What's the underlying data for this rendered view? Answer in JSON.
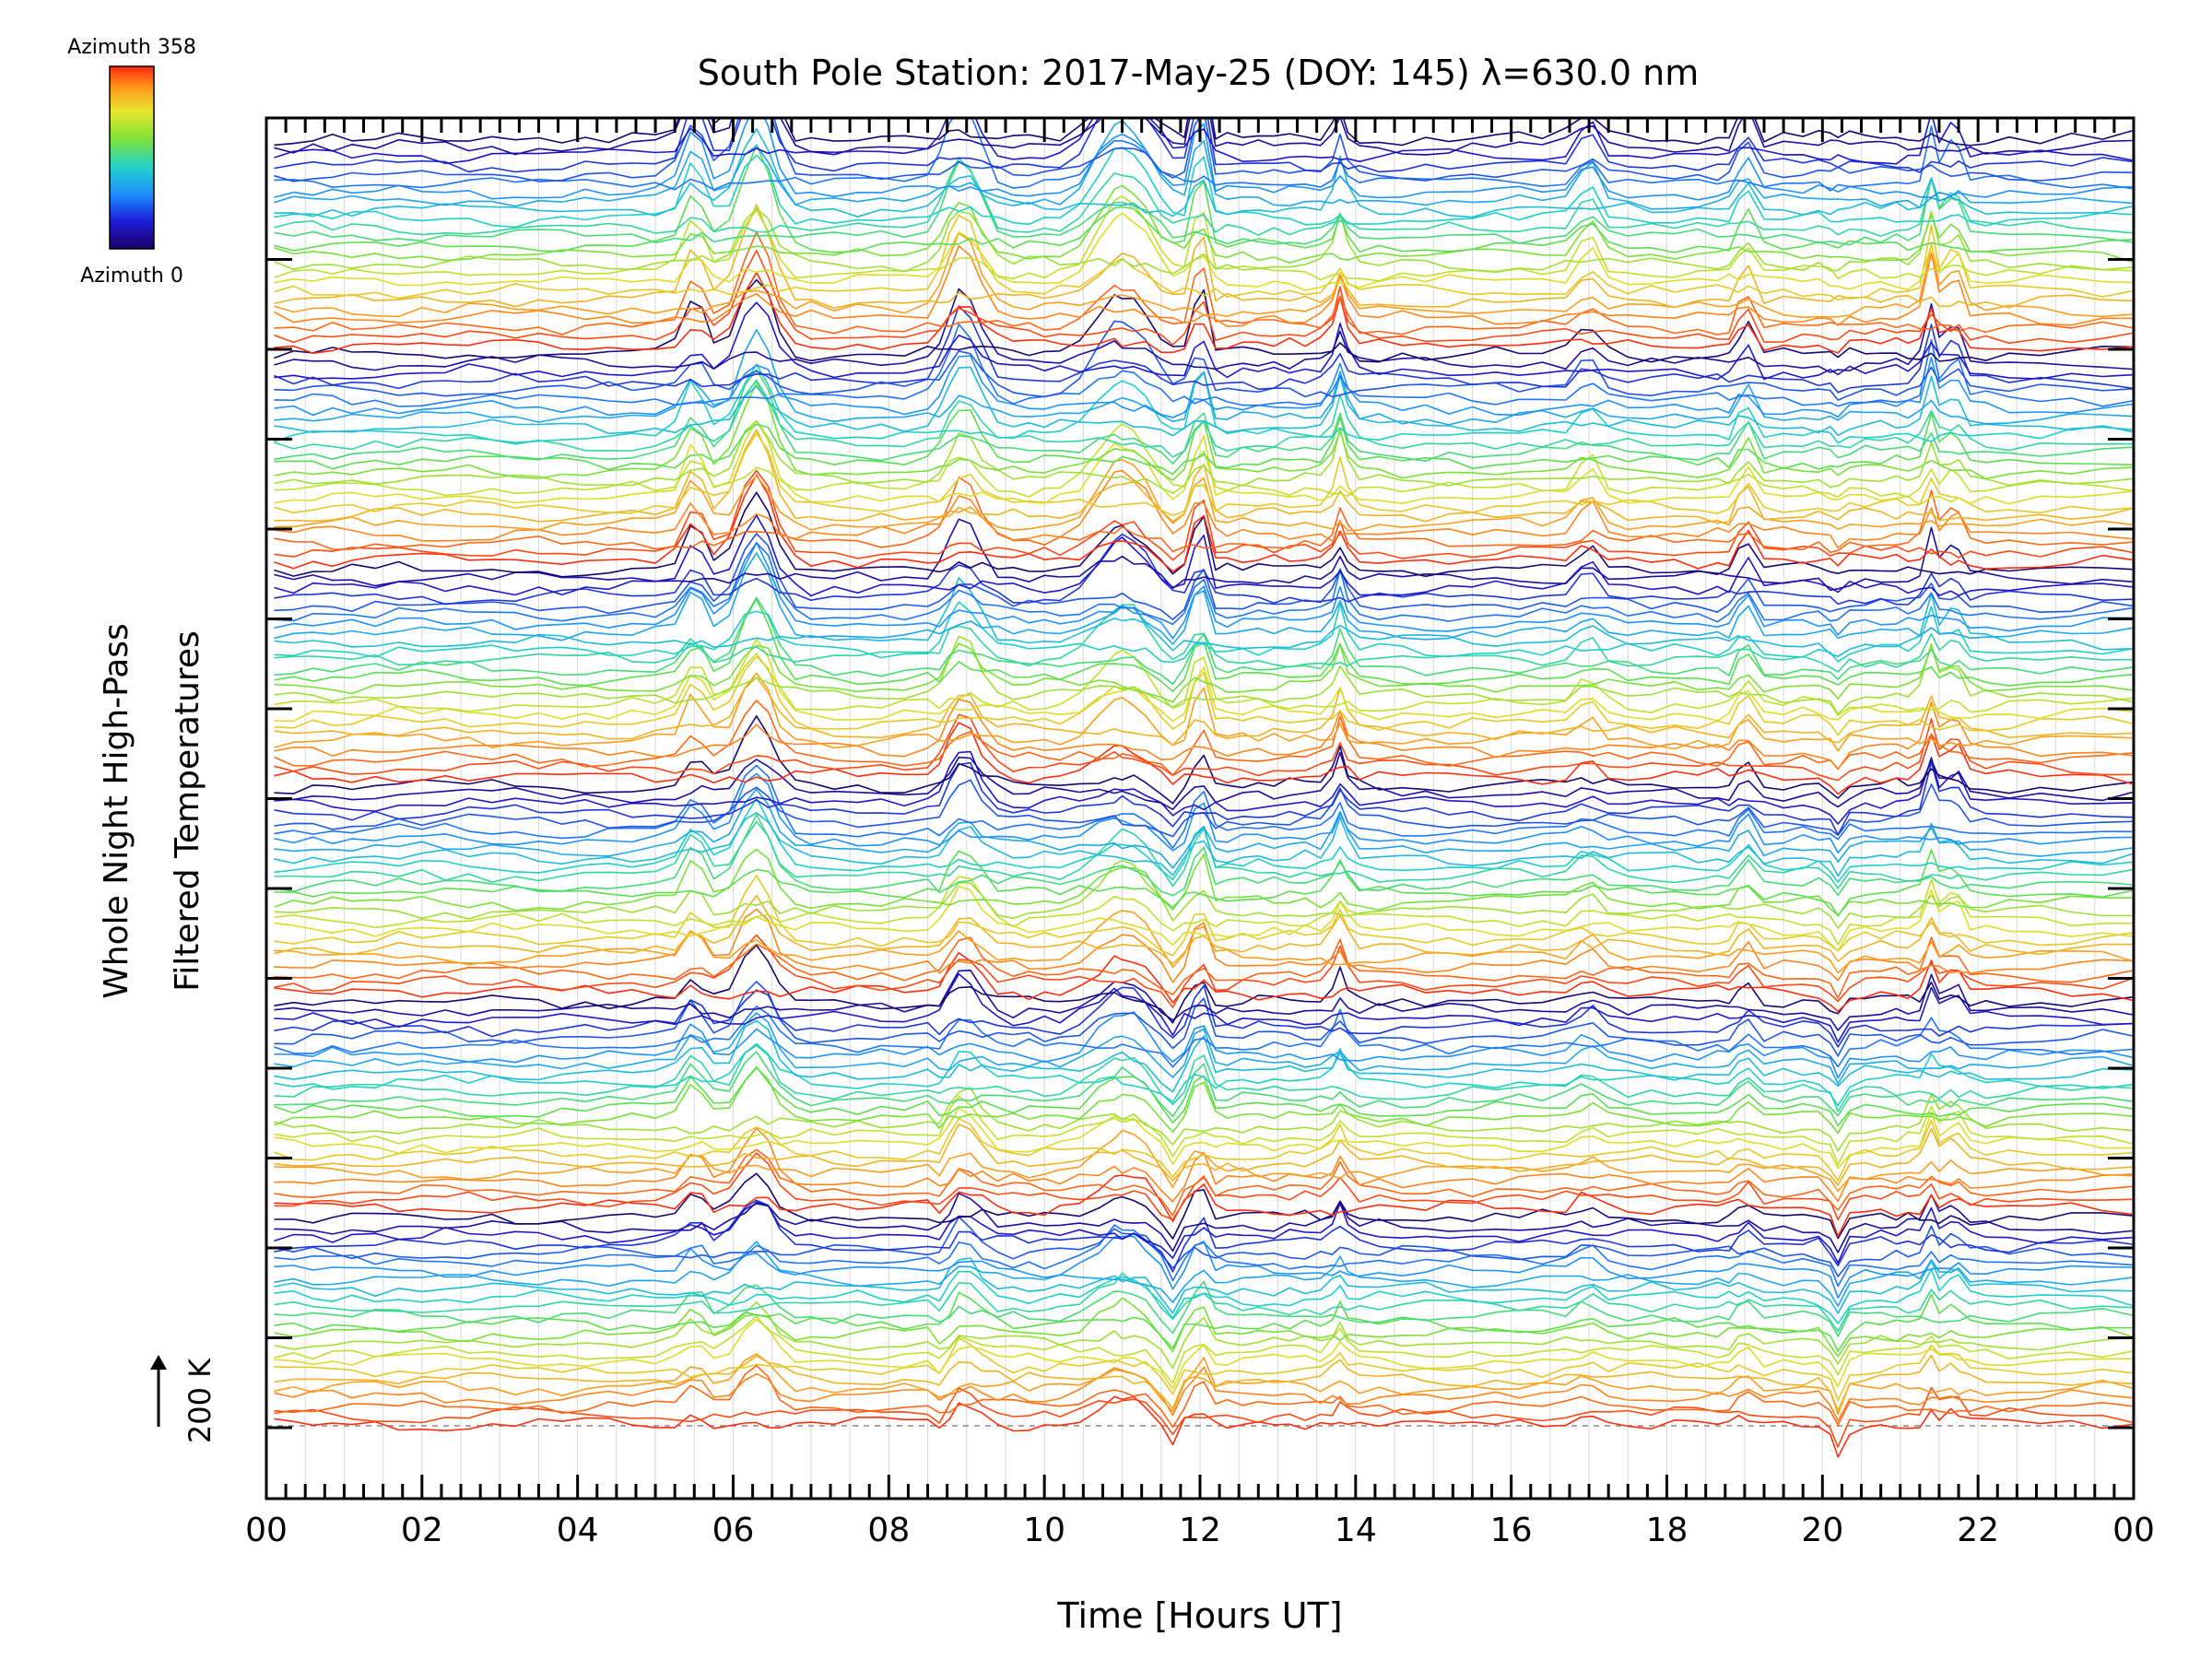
{
  "chart_data": {
    "type": "line",
    "title": "South Pole Station: 2017-May-25 (DOY: 145) λ=630.0 nm",
    "xlabel": "Time [Hours UT]",
    "ylabel": "Whole Night High-Pass",
    "ylabel_line2": "Filtered Temperatures",
    "xlim": [
      0,
      24
    ],
    "x_tick_labels": [
      "00",
      "02",
      "04",
      "06",
      "08",
      "10",
      "12",
      "14",
      "16",
      "18",
      "20",
      "22",
      "00"
    ],
    "grid": true,
    "colorbar": {
      "top_label": "Azimuth  358",
      "bottom_label": "Azimuth  0",
      "colormap": "rainbow",
      "range": [
        0,
        358
      ]
    },
    "scale_bar": {
      "label": "200 K"
    },
    "series_count": 144,
    "stack_groups": 6,
    "sample_times": [
      0.1,
      0.35,
      0.6,
      0.85,
      1.1,
      1.4,
      1.7,
      2.0,
      2.3,
      2.6,
      2.9,
      3.2,
      3.5,
      3.8,
      4.1,
      4.4,
      4.7,
      5.0,
      5.25,
      5.45,
      5.6,
      5.75,
      5.95,
      6.15,
      6.3,
      6.45,
      6.6,
      6.8,
      7.0,
      7.3,
      7.6,
      7.9,
      8.2,
      8.5,
      8.65,
      8.78,
      8.9,
      9.05,
      9.2,
      9.4,
      9.6,
      9.8,
      10.0,
      10.2,
      10.45,
      10.7,
      10.9,
      11.0,
      11.15,
      11.3,
      11.5,
      11.65,
      11.8,
      11.93,
      12.05,
      12.2,
      12.35,
      12.55,
      12.75,
      12.95,
      13.15,
      13.35,
      13.55,
      13.7,
      13.8,
      13.9,
      14.05,
      14.3,
      14.6,
      14.9,
      15.2,
      15.5,
      15.8,
      16.1,
      16.4,
      16.7,
      16.9,
      17.05,
      17.25,
      17.5,
      17.8,
      18.1,
      18.4,
      18.65,
      18.8,
      18.92,
      19.05,
      19.25,
      19.5,
      19.75,
      19.95,
      20.1,
      20.2,
      20.35,
      20.55,
      20.75,
      20.95,
      21.1,
      21.25,
      21.4,
      21.5,
      21.65,
      21.75,
      21.9,
      22.1,
      22.4,
      22.8,
      23.2,
      23.6,
      23.98
    ],
    "events": [
      {
        "t": 5.5,
        "amp": 55,
        "w": 0.18
      },
      {
        "t": 6.3,
        "amp": 95,
        "w": 0.28
      },
      {
        "t": 8.95,
        "amp": 80,
        "w": 0.3
      },
      {
        "t": 11.0,
        "amp": 75,
        "w": 0.45
      },
      {
        "t": 12.0,
        "amp": 80,
        "w": 0.1
      },
      {
        "t": 13.8,
        "amp": 50,
        "w": 0.1
      },
      {
        "t": 17.0,
        "amp": 40,
        "w": 0.2
      },
      {
        "t": 19.0,
        "amp": 45,
        "w": 0.1
      },
      {
        "t": 21.4,
        "amp": 60,
        "w": 0.1
      },
      {
        "t": 21.7,
        "amp": 45,
        "w": 0.1
      }
    ],
    "dips": [
      {
        "t": 11.6,
        "amp": 35,
        "w": 0.1
      },
      {
        "t": 20.2,
        "amp": 30,
        "w": 0.1
      },
      {
        "t": 8.7,
        "amp": 20,
        "w": 0.08
      }
    ]
  }
}
